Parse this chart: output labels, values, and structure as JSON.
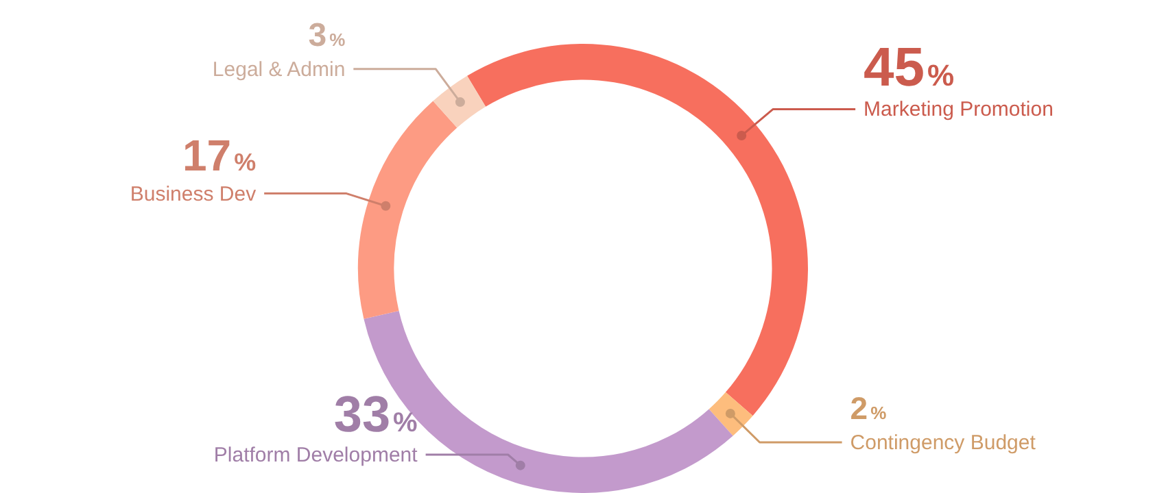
{
  "chart_data": {
    "type": "donut",
    "categories": [
      "Marketing Promotion",
      "Contingency Budget",
      "Platform Development",
      "Business Dev",
      "Legal & Admin"
    ],
    "values": [
      45,
      2,
      33,
      17,
      3
    ],
    "colors": [
      "#f76f5e",
      "#fdbd7d",
      "#c39acc",
      "#fd9b83",
      "#f9d2bd"
    ],
    "value_labels": [
      "45%",
      "2%",
      "33%",
      "17%",
      "3%"
    ],
    "legend": false
  }
}
